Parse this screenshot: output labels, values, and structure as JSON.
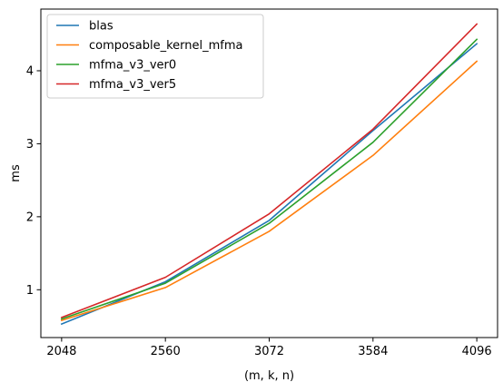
{
  "chart_data": {
    "type": "line",
    "xlabel": "(m, k, n)",
    "ylabel": "ms",
    "x": [
      2048,
      2560,
      3072,
      3584,
      4096
    ],
    "xticks": [
      "2048",
      "2560",
      "3072",
      "3584",
      "4096"
    ],
    "yticks": [
      "1",
      "2",
      "3",
      "4"
    ],
    "ytick_values": [
      1,
      2,
      3,
      4
    ],
    "xlim": [
      1945.6,
      4198.4
    ],
    "ylim": [
      0.345,
      4.845
    ],
    "grid": false,
    "legend": "upper left",
    "series": [
      {
        "name": "blas",
        "color": "#1f77b4",
        "values": [
          0.53,
          1.11,
          1.95,
          3.18,
          4.37
        ]
      },
      {
        "name": "composable_kernel_mfma",
        "color": "#ff7f0e",
        "values": [
          0.58,
          1.03,
          1.8,
          2.84,
          4.13
        ]
      },
      {
        "name": "mfma_v3_ver0",
        "color": "#2ca02c",
        "values": [
          0.6,
          1.09,
          1.91,
          3.02,
          4.43
        ]
      },
      {
        "name": "mfma_v3_ver5",
        "color": "#d62728",
        "values": [
          0.62,
          1.17,
          2.04,
          3.2,
          4.64
        ]
      }
    ]
  }
}
